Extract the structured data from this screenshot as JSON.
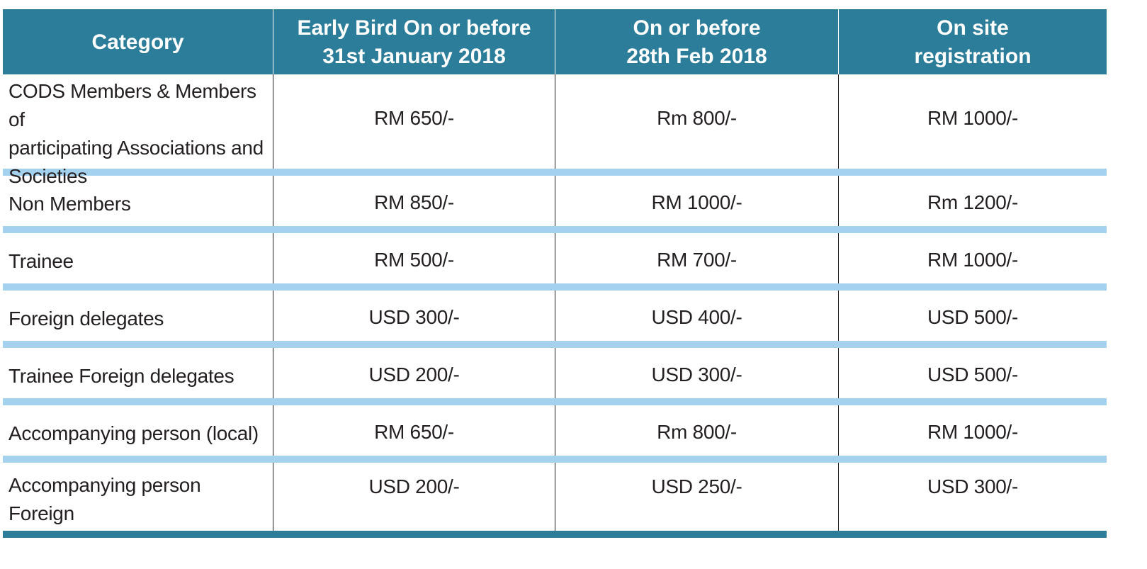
{
  "table": {
    "headers": [
      "Category",
      "Early Bird On or before\n31st January 2018",
      "On or before\n28th Feb 2018",
      "On site\nregistration"
    ],
    "rows": [
      {
        "category": "CODS Members & Members of\nparticipating Associations and\nSocieties",
        "early_bird": "RM 650/-",
        "before_feb": "Rm 800/-",
        "on_site": "RM 1000/-"
      },
      {
        "category": "Non Members",
        "early_bird": "RM 850/-",
        "before_feb": "RM 1000/-",
        "on_site": "Rm 1200/-"
      },
      {
        "category": "Trainee",
        "early_bird": "RM 500/-",
        "before_feb": "RM 700/-",
        "on_site": "RM 1000/-"
      },
      {
        "category": "Foreign delegates",
        "early_bird": "USD 300/-",
        "before_feb": "USD 400/-",
        "on_site": "USD 500/-"
      },
      {
        "category": "Trainee Foreign delegates",
        "early_bird": "USD 200/-",
        "before_feb": "USD 300/-",
        "on_site": "USD 500/-"
      },
      {
        "category": "Accompanying person (local)",
        "early_bird": "RM 650/-",
        "before_feb": "Rm 800/-",
        "on_site": "RM 1000/-"
      },
      {
        "category": "Accompanying person\nForeign",
        "early_bird": "USD 200/-",
        "before_feb": "USD 250/-",
        "on_site": "USD 300/-"
      }
    ]
  },
  "colors": {
    "header_bg": "#2c7d9a",
    "separator": "#a4d2ee",
    "text": "#231f20"
  }
}
